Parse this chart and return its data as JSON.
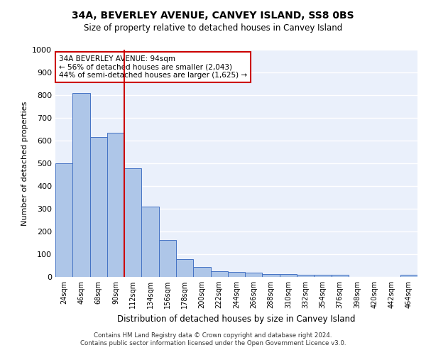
{
  "title": "34A, BEVERLEY AVENUE, CANVEY ISLAND, SS8 0BS",
  "subtitle": "Size of property relative to detached houses in Canvey Island",
  "xlabel": "Distribution of detached houses by size in Canvey Island",
  "ylabel": "Number of detached properties",
  "footer_line1": "Contains HM Land Registry data © Crown copyright and database right 2024.",
  "footer_line2": "Contains public sector information licensed under the Open Government Licence v3.0.",
  "categories": [
    "24sqm",
    "46sqm",
    "68sqm",
    "90sqm",
    "112sqm",
    "134sqm",
    "156sqm",
    "178sqm",
    "200sqm",
    "222sqm",
    "244sqm",
    "266sqm",
    "288sqm",
    "310sqm",
    "332sqm",
    "354sqm",
    "376sqm",
    "398sqm",
    "420sqm",
    "442sqm",
    "464sqm"
  ],
  "values": [
    500,
    808,
    615,
    635,
    478,
    308,
    163,
    79,
    45,
    25,
    22,
    18,
    13,
    12,
    9,
    8,
    8,
    0,
    0,
    0,
    8
  ],
  "bar_color": "#aec6e8",
  "bar_edge_color": "#4472c4",
  "background_color": "#eaf0fb",
  "ylim": [
    0,
    1000
  ],
  "yticks": [
    0,
    100,
    200,
    300,
    400,
    500,
    600,
    700,
    800,
    900,
    1000
  ],
  "property_label": "34A BEVERLEY AVENUE: 94sqm",
  "annotation_line1": "← 56% of detached houses are smaller (2,043)",
  "annotation_line2": "44% of semi-detached houses are larger (1,625) →",
  "vline_position": 3.5,
  "annotation_box_color": "#ffffff",
  "annotation_box_edge": "#cc0000",
  "vline_color": "#cc0000"
}
